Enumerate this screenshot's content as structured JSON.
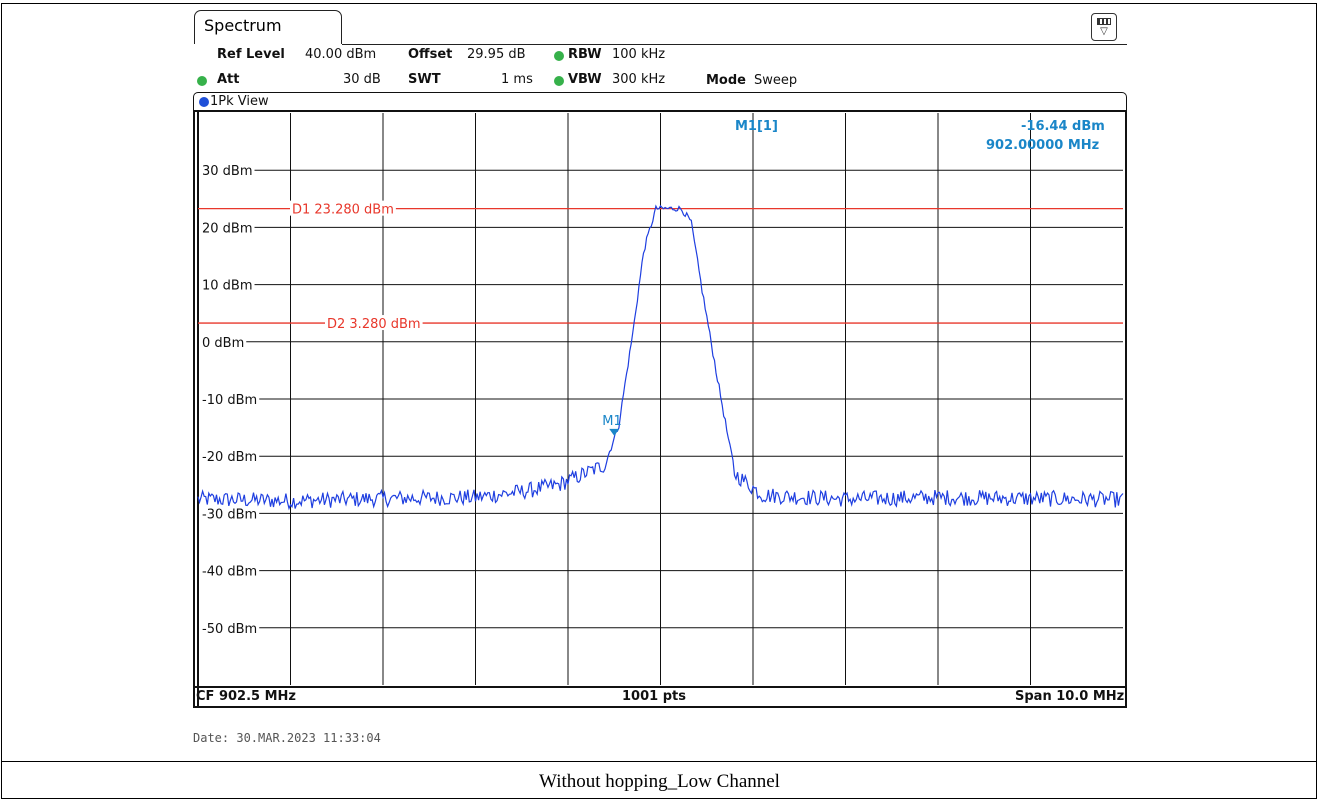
{
  "window": {
    "tab_label": "Spectrum",
    "settings_icon": "window-settings-icon",
    "view_label": "1Pk View"
  },
  "params": {
    "ref_level_label": "Ref Level",
    "ref_level_value": "40.00 dBm",
    "offset_label": "Offset",
    "offset_value": "29.95 dB",
    "rbw_label": "RBW",
    "rbw_value": "100 kHz",
    "att_label": "Att",
    "att_value": "30 dB",
    "swt_label": "SWT",
    "swt_value": "1 ms",
    "vbw_label": "VBW",
    "vbw_value": "300 kHz",
    "mode_label": "Mode",
    "mode_value": "Sweep"
  },
  "marker": {
    "name": "M1[1]",
    "level": "-16.44 dBm",
    "freq": "902.00000 MHz",
    "label": "M1",
    "x_mhz": 902.0,
    "y_dbm": -16.44
  },
  "footer": {
    "cf": "CF 902.5 MHz",
    "pts": "1001 pts",
    "span": "Span 10.0 MHz"
  },
  "date": "Date: 30.MAR.2023  11:33:04",
  "caption": "Without hopping_Low Channel",
  "colors": {
    "trace": "#1f3fe0",
    "display_line": "#e8372b",
    "marker": "#1a86c8",
    "grid": "#111111"
  },
  "chart_data": {
    "type": "line",
    "x_range_mhz": [
      897.5,
      907.5
    ],
    "ylim": [
      -60,
      40
    ],
    "y_ticks": [
      {
        "value": 30,
        "label": "30 dBm"
      },
      {
        "value": 20,
        "label": "20 dBm"
      },
      {
        "value": 10,
        "label": "10 dBm"
      },
      {
        "value": 0,
        "label": "0 dBm"
      },
      {
        "value": -10,
        "label": "-10 dBm"
      },
      {
        "value": -20,
        "label": "-20 dBm"
      },
      {
        "value": -30,
        "label": "-30 dBm"
      },
      {
        "value": -40,
        "label": "-40 dBm"
      },
      {
        "value": -50,
        "label": "-50 dBm"
      }
    ],
    "grid": true,
    "display_lines": [
      {
        "label": "D1  23.280 dBm",
        "value": 23.28
      },
      {
        "label": "D2  3.280 dBm",
        "value": 3.28
      }
    ],
    "series": [
      {
        "x": [
          897.5,
          898.5,
          899.5,
          900.5,
          901.0,
          901.4,
          901.9,
          902.05,
          902.2,
          902.32,
          902.45,
          902.6,
          902.72,
          902.83,
          902.95,
          903.1,
          903.3,
          903.6,
          904.5,
          905.5,
          906.5,
          907.5
        ],
        "values": [
          -27.5,
          -27.8,
          -27.4,
          -27.2,
          -26.2,
          -25.0,
          -21.5,
          -14.5,
          1.5,
          16.0,
          23.3,
          23.3,
          23.3,
          21.0,
          9.0,
          -5.0,
          -23.0,
          -26.8,
          -27.5,
          -27.2,
          -27.4,
          -27.6
        ]
      }
    ]
  }
}
